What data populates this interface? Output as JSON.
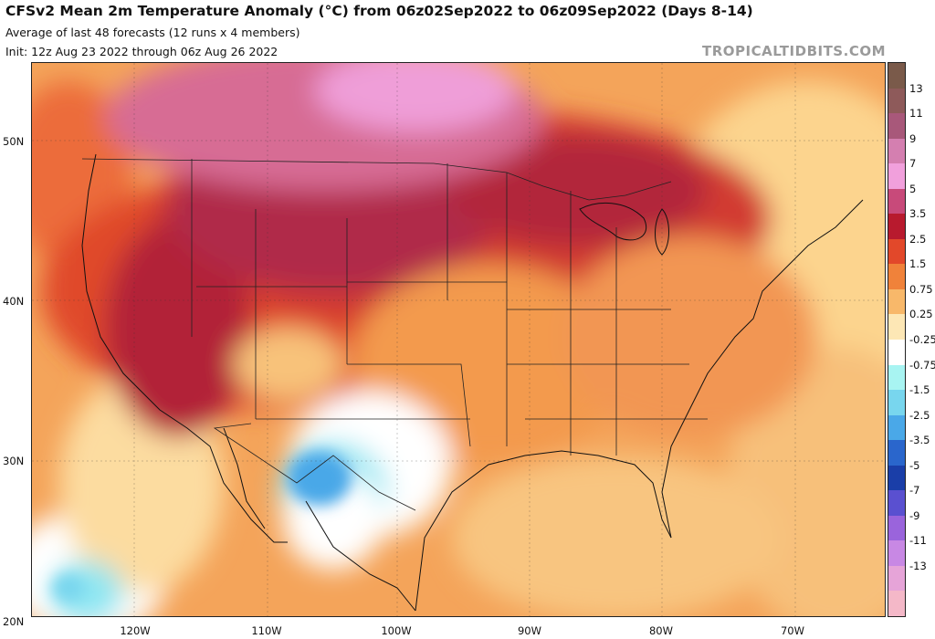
{
  "header": {
    "title": "CFSv2 Mean 2m Temperature Anomaly (°C) from 06z02Sep2022 to 06z09Sep2022 (Days 8-14)",
    "subtitle": "Average of last 48 forecasts (12 runs x 4 members)",
    "init": "Init: 12z Aug 23 2022 through 06z Aug 26 2022",
    "brand": "TROPICALTIDBITS.COM"
  },
  "map": {
    "lat_labels": [
      "50N",
      "40N",
      "30N",
      "20N"
    ],
    "lon_labels": [
      "120W",
      "110W",
      "100W",
      "90W",
      "80W",
      "70W"
    ],
    "region": "Contiguous United States, northern Mexico, Gulf of Mexico, western Atlantic"
  },
  "colorbar": {
    "labels": [
      "13",
      "11",
      "9",
      "7",
      "5",
      "3.5",
      "2.5",
      "1.5",
      "0.75",
      "0.25",
      "-0.25",
      "-0.75",
      "-1.5",
      "-2.5",
      "-3.5",
      "-5",
      "-7",
      "-9",
      "-11",
      "-13"
    ],
    "colors": [
      "#7a5a4a",
      "#8e5a5a",
      "#a8587a",
      "#d47fb0",
      "#f1a0dc",
      "#c84a7a",
      "#b81a2e",
      "#e2482a",
      "#f0823a",
      "#f8b86a",
      "#fde7b5",
      "#ffffff",
      "#a8f4f2",
      "#78d6ee",
      "#4aa8e8",
      "#2a66cc",
      "#1a3ea8",
      "#5a50d0",
      "#9a64dc",
      "#c888e4",
      "#e6a4d8",
      "#f4b8c8"
    ]
  }
}
